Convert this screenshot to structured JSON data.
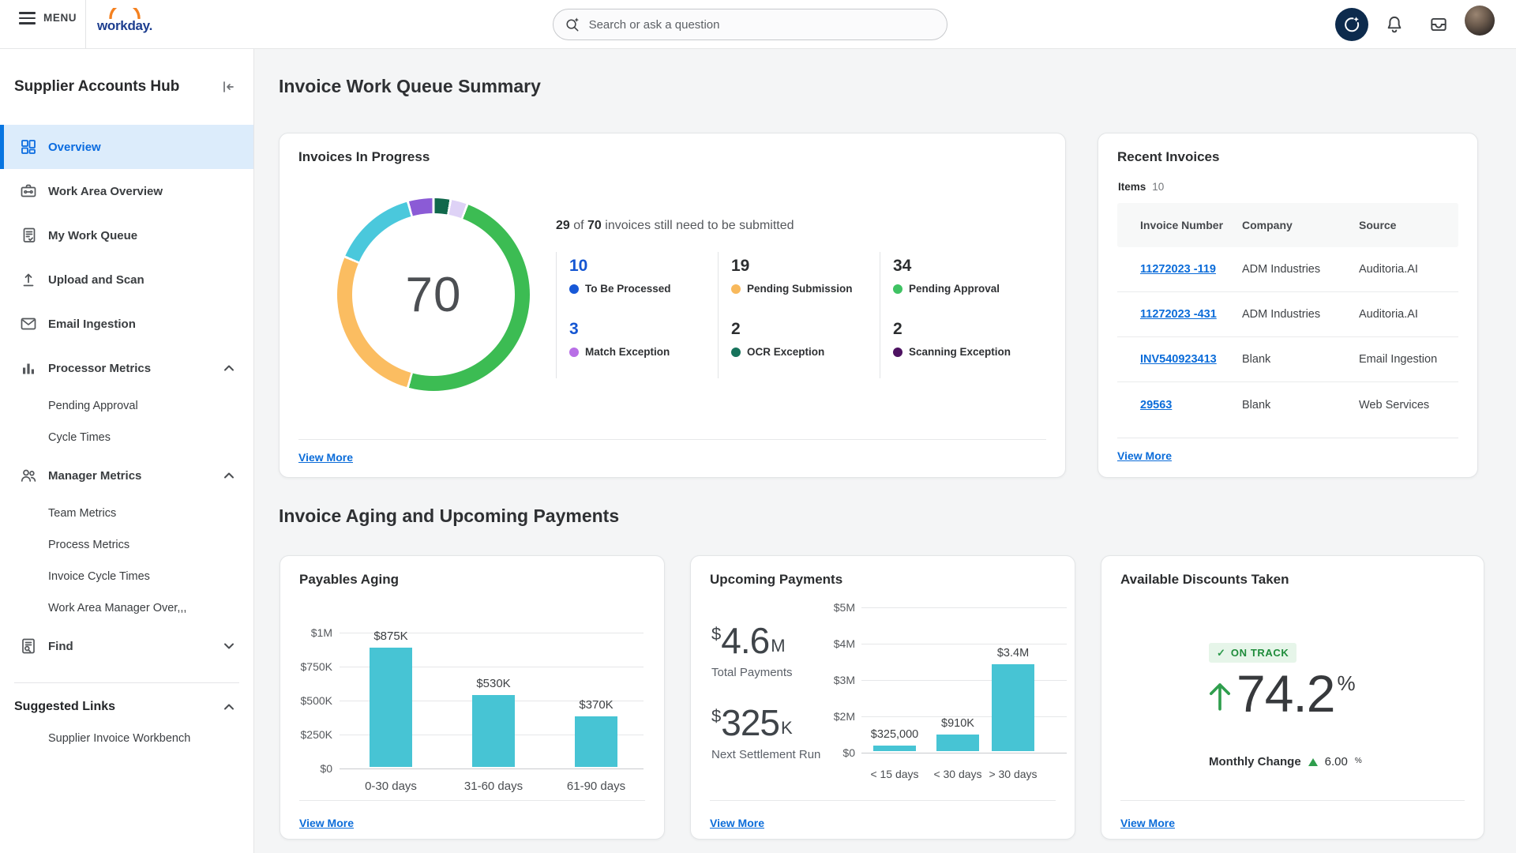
{
  "topbar": {
    "menu": "MENU",
    "brand": "workday.",
    "search_placeholder": "Search or ask a question"
  },
  "sidebar": {
    "title": "Supplier Accounts Hub",
    "nav": [
      "Overview",
      "Work Area Overview",
      "My Work Queue",
      "Upload and Scan",
      "Email Ingestion",
      "Processor Metrics",
      "Pending Approval",
      "Cycle Times",
      "Manager Metrics",
      "Team Metrics",
      "Process Metrics",
      "Invoice Cycle Times",
      "Work Area Manager Over,,,",
      "Find"
    ],
    "suggested_title": "Suggested Links",
    "suggested": [
      "Supplier Invoice Workbench"
    ]
  },
  "headings": {
    "section1": "Invoice Work Queue Summary",
    "section2": "Invoice Aging and Upcoming Payments"
  },
  "progress_card": {
    "title": "Invoices In Progress",
    "summary": {
      "count": "29",
      "of": " of ",
      "total": "70",
      "rest": " invoices still need to be submitted"
    },
    "stats": [
      {
        "value": "10",
        "label": "To Be Processed",
        "dot": "#1758d7",
        "value_color": "#1556d2"
      },
      {
        "value": "19",
        "label": "Pending Submission",
        "dot": "#f8b95c",
        "value_color": "#2b2d2f"
      },
      {
        "value": "34",
        "label": "Pending Approval",
        "dot": "#3fc263",
        "value_color": "#2b2d2f"
      },
      {
        "value": "3",
        "label": "Match Exception",
        "dot": "#b86fe6",
        "value_color": "#1556d2"
      },
      {
        "value": "2",
        "label": "OCR Exception",
        "dot": "#17735c",
        "value_color": "#2b2d2f"
      },
      {
        "value": "2",
        "label": "Scanning Exception",
        "dot": "#4d1261",
        "value_color": "#2b2d2f"
      }
    ],
    "view_more": "View More"
  },
  "recent_card": {
    "title": "Recent Invoices",
    "items_label": "Items",
    "items_count": "10",
    "columns": [
      "Invoice Number",
      "Company",
      "Source"
    ],
    "rows": [
      {
        "number": "11272023 -119",
        "company": "ADM Industries",
        "source": "Auditoria.AI"
      },
      {
        "number": "11272023 -431",
        "company": "ADM Industries",
        "source": "Auditoria.AI"
      },
      {
        "number": "INV540923413",
        "company": "Blank",
        "source": "Email Ingestion"
      },
      {
        "number": "29563",
        "company": "Blank",
        "source": "Web Services"
      }
    ],
    "view_more": "View More"
  },
  "payables_card": {
    "title": "Payables Aging",
    "view_more": "View More"
  },
  "upcoming_card": {
    "title": "Upcoming Payments",
    "kpi1_prefix": "$",
    "kpi1_value": "4.6",
    "kpi1_suffix": "M",
    "kpi1_label": "Total Payments",
    "kpi2_prefix": "$",
    "kpi2_value": "325",
    "kpi2_suffix": "K",
    "kpi2_label": "Next Settlement Run",
    "view_more": "View More"
  },
  "discounts_card": {
    "title": "Available Discounts Taken",
    "badge_check": "✓",
    "badge": "ON TRACK",
    "value": "74.2",
    "unit": "%",
    "change_label": "Monthly Change",
    "change_value": "6.00",
    "change_unit": "%",
    "view_more": "View More",
    "status_green": "#2f9e4d"
  },
  "chart_data": [
    {
      "type": "donut",
      "title": "Invoices In Progress",
      "center_label": "70",
      "total": 70,
      "segments": [
        {
          "label": "OCR Exception",
          "value": 2,
          "color": "#10684b"
        },
        {
          "label": "Scanning Exception",
          "value": 2,
          "color": "#ded2f6"
        },
        {
          "label": "Pending Approval",
          "value": 34,
          "color": "#3cbc53"
        },
        {
          "label": "Pending Submission",
          "value": 19,
          "color": "#fbbd61"
        },
        {
          "label": "To Be Processed",
          "value": 10,
          "color": "#4ac8dc"
        },
        {
          "label": "Match Exception",
          "value": 3,
          "color": "#8b5bd6"
        }
      ]
    },
    {
      "type": "bar",
      "title": "Payables Aging",
      "categories": [
        "0-30 days",
        "31-60 days",
        "61-90 days"
      ],
      "values": [
        875000,
        530000,
        370000
      ],
      "labels": [
        "$875K",
        "$530K",
        "$370K"
      ],
      "yticks": [
        "$1M",
        "$750K",
        "$500K",
        "$250K",
        "$0"
      ],
      "ytick_values": [
        1000000,
        750000,
        500000,
        250000,
        0
      ],
      "ylim": [
        0,
        1000000
      ],
      "bar_color": "#47c4d4",
      "grid": true,
      "legend": "none"
    },
    {
      "type": "bar",
      "title": "Upcoming Payments",
      "categories": [
        "< 15 days",
        "< 30 days",
        "> 30 days"
      ],
      "values": [
        325000,
        910000,
        3400000
      ],
      "labels": [
        "$325,000",
        "$910K",
        "$3.4M"
      ],
      "yticks": [
        "$5M",
        "$4M",
        "$3M",
        "$2M",
        "$0"
      ],
      "ytick_values": [
        5000000,
        4000000,
        3000000,
        2000000,
        0
      ],
      "ylim": [
        0,
        5000000
      ],
      "bar_color": "#47c4d4",
      "grid": true,
      "legend": "none"
    }
  ]
}
